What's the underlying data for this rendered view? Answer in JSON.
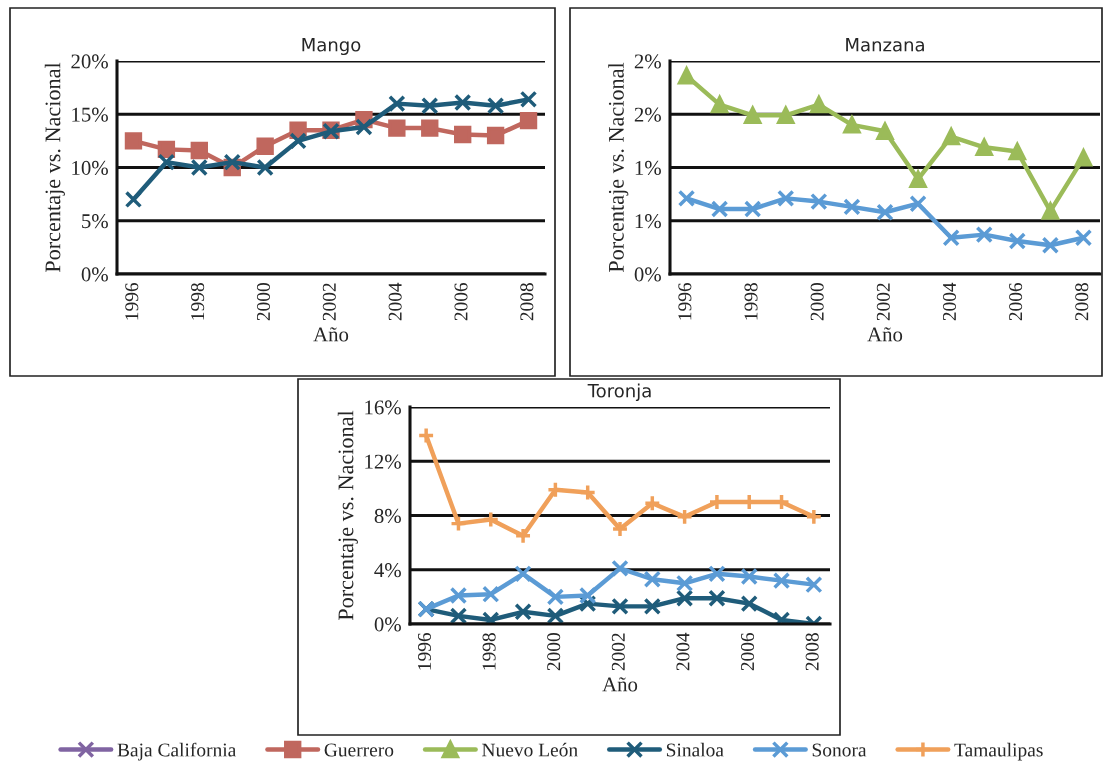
{
  "chart_data": [
    {
      "type": "line",
      "title": "Mango",
      "xlabel": "Año",
      "ylabel": "Porcentaje vs. Nacional",
      "x": [
        1996,
        1997,
        1998,
        1999,
        2000,
        2001,
        2002,
        2003,
        2004,
        2005,
        2006,
        2007,
        2008
      ],
      "xlim": [
        1995.5,
        2008.5
      ],
      "xticks": [
        1996,
        1998,
        2000,
        2002,
        2004,
        2006,
        2008
      ],
      "ylim": [
        0,
        20
      ],
      "yticks": [
        {
          "value": 0,
          "label": "0%"
        },
        {
          "value": 5,
          "label": "5%"
        },
        {
          "value": 10,
          "label": "10%"
        },
        {
          "value": 15,
          "label": "15%"
        },
        {
          "value": 20,
          "label": "20%"
        }
      ],
      "grid": "y",
      "legend": "bottom",
      "series": [
        {
          "name": "Baja California",
          "color": "#8064a2",
          "marker": "cross",
          "values": [
            null,
            null,
            null,
            null,
            null,
            null,
            null,
            null,
            null,
            null,
            null,
            null,
            null
          ]
        },
        {
          "name": "Guerrero",
          "color": "#c0675e",
          "marker": "square",
          "values": [
            12.5,
            11.7,
            11.6,
            10.0,
            12.0,
            13.5,
            13.5,
            14.5,
            13.7,
            13.7,
            13.1,
            13.0,
            14.4
          ]
        },
        {
          "name": "Sinaloa",
          "color": "#1f5c7a",
          "marker": "cross",
          "values": [
            7.0,
            10.5,
            10.0,
            10.5,
            10.0,
            12.5,
            13.4,
            13.8,
            16.0,
            15.8,
            16.1,
            15.8,
            16.4
          ]
        }
      ]
    },
    {
      "type": "line",
      "title": "Manzana",
      "xlabel": "Año",
      "ylabel": "Porcentaje vs. Nacional",
      "x": [
        1996,
        1997,
        1998,
        1999,
        2000,
        2001,
        2002,
        2003,
        2004,
        2005,
        2006,
        2007,
        2008
      ],
      "xlim": [
        1995.5,
        2008.5
      ],
      "xticks": [
        1996,
        1998,
        2000,
        2002,
        2004,
        2006,
        2008
      ],
      "ylim": [
        0,
        2
      ],
      "yticks": [
        {
          "value": 0,
          "label": "0%"
        },
        {
          "value": 0.5,
          "label": "1%"
        },
        {
          "value": 1,
          "label": "1%"
        },
        {
          "value": 1.5,
          "label": "2%"
        },
        {
          "value": 2,
          "label": "2%"
        }
      ],
      "grid": "y",
      "legend": "bottom",
      "series": [
        {
          "name": "Nuevo León",
          "color": "#9bbb59",
          "marker": "triangle",
          "values": [
            1.86,
            1.59,
            1.49,
            1.49,
            1.59,
            1.4,
            1.34,
            0.89,
            1.29,
            1.19,
            1.15,
            0.59,
            1.09
          ]
        },
        {
          "name": "Sonora",
          "color": "#5b9bd5",
          "marker": "cross",
          "values": [
            0.71,
            0.61,
            0.61,
            0.71,
            0.68,
            0.63,
            0.58,
            0.66,
            0.34,
            0.37,
            0.31,
            0.27,
            0.34
          ]
        }
      ]
    },
    {
      "type": "line",
      "title": "Toronja",
      "xlabel": "Año",
      "ylabel": "Porcentaje vs. Nacional",
      "x": [
        1996,
        1997,
        1998,
        1999,
        2000,
        2001,
        2002,
        2003,
        2004,
        2005,
        2006,
        2007,
        2008
      ],
      "xlim": [
        1995.5,
        2008.5
      ],
      "xticks": [
        1996,
        1998,
        2000,
        2002,
        2004,
        2006,
        2008
      ],
      "ylim": [
        0,
        16
      ],
      "yticks": [
        {
          "value": 0,
          "label": "0%"
        },
        {
          "value": 4,
          "label": "4%"
        },
        {
          "value": 8,
          "label": "8%"
        },
        {
          "value": 12,
          "label": "12%"
        },
        {
          "value": 16,
          "label": "16%"
        }
      ],
      "grid": "y",
      "legend": "bottom",
      "series": [
        {
          "name": "Sinaloa",
          "color": "#1f5c7a",
          "marker": "cross",
          "values": [
            1.1,
            0.6,
            0.3,
            0.9,
            0.6,
            1.5,
            1.3,
            1.3,
            1.9,
            1.9,
            1.5,
            0.3,
            0.0
          ]
        },
        {
          "name": "Sonora",
          "color": "#5b9bd5",
          "marker": "cross",
          "values": [
            1.1,
            2.1,
            2.2,
            3.7,
            2.0,
            2.1,
            4.1,
            3.3,
            3.0,
            3.7,
            3.5,
            3.2,
            2.9
          ]
        },
        {
          "name": "Tamaulipas",
          "color": "#f0a05a",
          "marker": "plus",
          "values": [
            13.9,
            7.4,
            7.7,
            6.5,
            9.9,
            9.7,
            7.0,
            8.9,
            7.9,
            9.0,
            9.0,
            9.0,
            7.9
          ]
        }
      ]
    }
  ]
}
